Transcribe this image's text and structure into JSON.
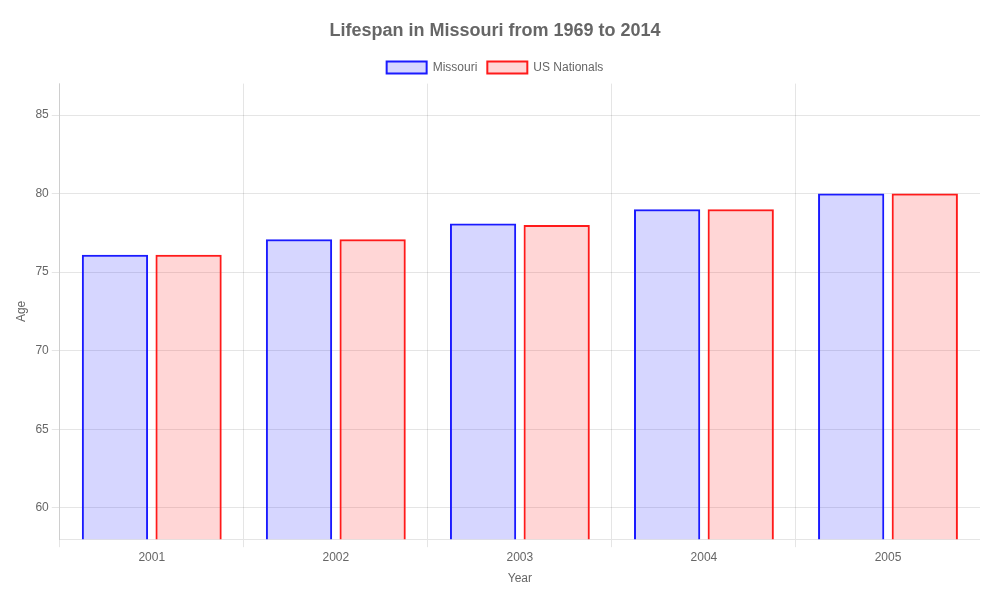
{
  "chart_data": {
    "type": "bar",
    "title": "Lifespan in Missouri from 1969 to 2014",
    "x_label": "Year",
    "y_label": "Age",
    "categories": [
      "2001",
      "2002",
      "2003",
      "2004",
      "2005"
    ],
    "series": [
      {
        "name": "Missouri",
        "color": "#1a1aff",
        "values": [
          76.1,
          77.1,
          78.1,
          79.0,
          80.0
        ]
      },
      {
        "name": "US Nationals",
        "color": "#ff1a1a",
        "values": [
          76.1,
          77.1,
          78.0,
          79.0,
          80.0
        ]
      }
    ],
    "ylim": [
      58,
      87
    ],
    "yticks": [
      60,
      65,
      70,
      75,
      80,
      85
    ],
    "grid": true,
    "legend": "top"
  }
}
